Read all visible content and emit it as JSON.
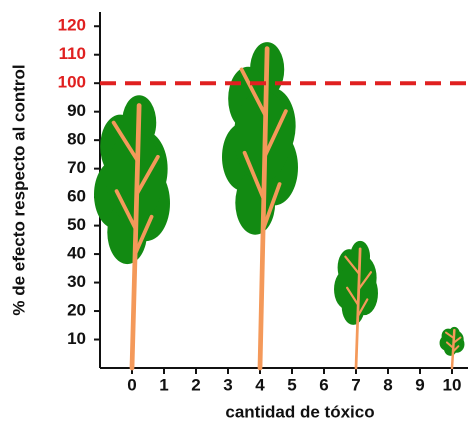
{
  "chart_data": {
    "type": "tree-bar",
    "y_label": "% de efecto respecto al control",
    "x_label": "cantidad de tóxico",
    "x": [
      0,
      4,
      7,
      10
    ],
    "values": [
      97,
      118,
      44,
      14
    ],
    "canopy_color": "#128a12",
    "trunk_color": "#f4995a",
    "xlim": [
      -1,
      10.5
    ],
    "xticks": [
      0,
      1,
      2,
      3,
      4,
      5,
      6,
      7,
      8,
      9,
      10
    ],
    "ylim": [
      0,
      125
    ],
    "yticks": [
      10,
      20,
      30,
      40,
      50,
      60,
      70,
      80,
      90,
      100,
      110,
      120
    ],
    "reference_line": {
      "value": 100,
      "color": "#e02020",
      "style": "dashed"
    }
  }
}
